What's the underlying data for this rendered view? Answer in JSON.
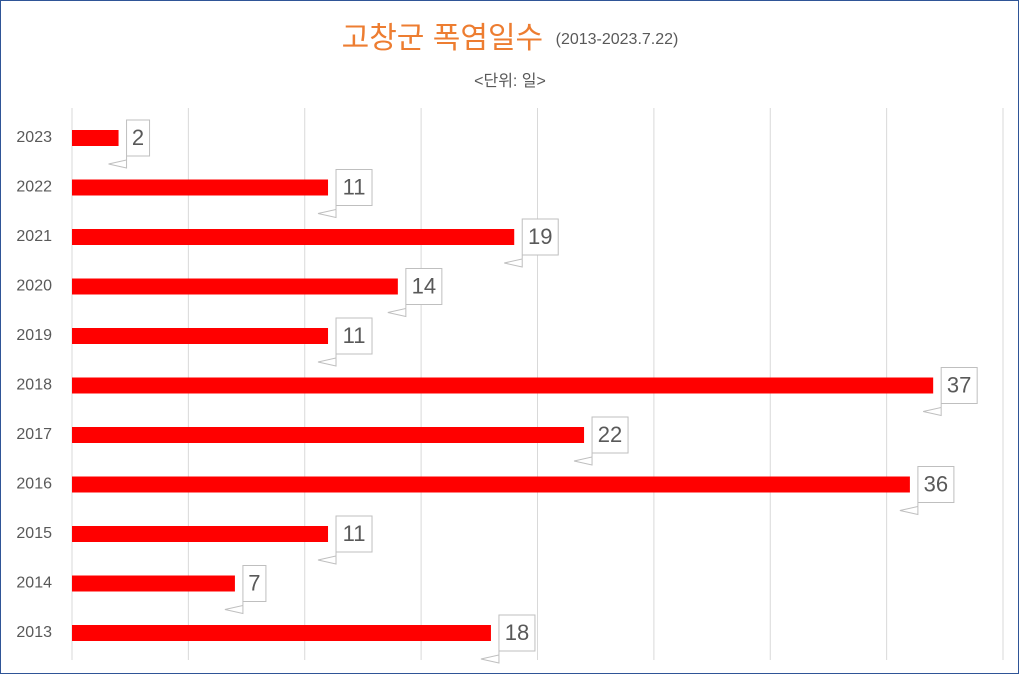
{
  "chart_data": {
    "type": "hbar",
    "title": "고창군 폭염일수",
    "title_note": "(2013-2023.7.22)",
    "subtitle": "<단위: 일>",
    "categories": [
      "2023",
      "2022",
      "2021",
      "2020",
      "2019",
      "2018",
      "2017",
      "2016",
      "2015",
      "2014",
      "2013"
    ],
    "values": [
      2,
      11,
      19,
      14,
      11,
      37,
      22,
      36,
      11,
      7,
      18
    ],
    "color": "#ff0000",
    "title_color": "#ed7d31",
    "xlim": [
      0,
      40
    ],
    "xticks": [
      0,
      5,
      10,
      15,
      20,
      25,
      30,
      35,
      40
    ],
    "grid": true
  }
}
